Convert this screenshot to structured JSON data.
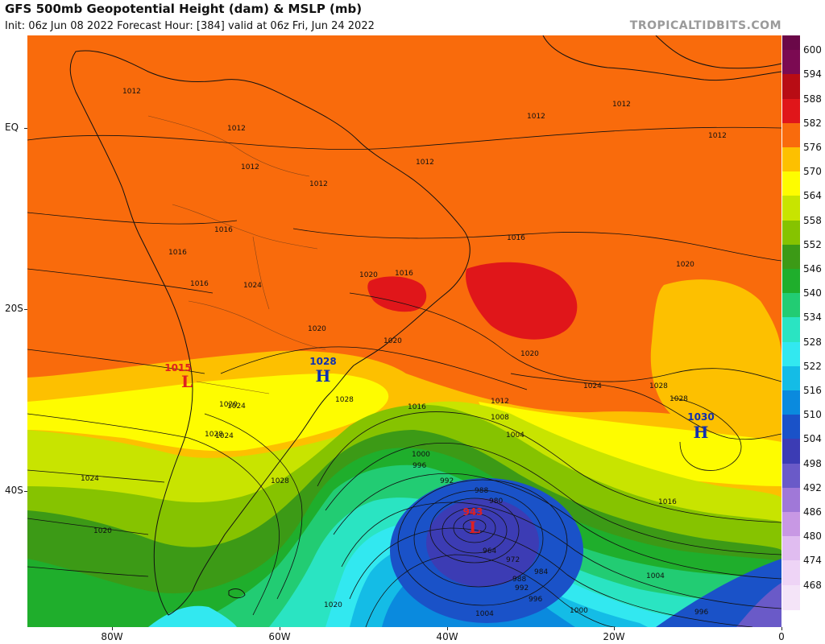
{
  "title": "GFS 500mb Geopotential Height (dam) & MSLP (mb)",
  "subtitle": "Init: 06z Jun 08 2022   Forecast Hour: [384]   valid at 06z Fri, Jun 24 2022",
  "brand": "TROPICALTIDBITS.COM",
  "lat_labels": [
    "EQ",
    "20S",
    "40S"
  ],
  "lon_labels": [
    "80W",
    "60W",
    "40W",
    "20W",
    "0"
  ],
  "colorbar": {
    "labels": [
      "600",
      "594",
      "588",
      "582",
      "576",
      "570",
      "564",
      "558",
      "552",
      "546",
      "540",
      "534",
      "528",
      "522",
      "516",
      "510",
      "504",
      "498",
      "492",
      "486",
      "480",
      "474",
      "468"
    ],
    "colors": [
      "#7b0a52",
      "#b80c14",
      "#e0161a",
      "#f96b0c",
      "#fdc000",
      "#fefc00",
      "#c8e400",
      "#86c300",
      "#3c9a16",
      "#1fae2c",
      "#22cc73",
      "#2ae4c2",
      "#32e8f0",
      "#14bce6",
      "#0a8ade",
      "#1a52c8",
      "#3c3cb4",
      "#6a5ac8",
      "#a078d8",
      "#c898e4",
      "#e0bcf0",
      "#eed4f6",
      "#f4e4f8"
    ]
  },
  "pressure_centers": [
    {
      "type": "L",
      "value": "1015",
      "color": "#e02020"
    },
    {
      "type": "H",
      "value": "1028",
      "color": "#1030b0"
    },
    {
      "type": "L",
      "value": "943",
      "color": "#e02020"
    },
    {
      "type": "H",
      "value": "1030",
      "color": "#1030b0"
    }
  ],
  "isobar_labels": [
    "1012",
    "1012",
    "1012",
    "1012",
    "1012",
    "1012",
    "1012",
    "1012",
    "1016",
    "1016",
    "1016",
    "1016",
    "1016",
    "1020",
    "1020",
    "1024",
    "1020",
    "1020",
    "1024",
    "1024",
    "1028",
    "1028",
    "1028",
    "1028",
    "1020",
    "1020",
    "1024",
    "1024",
    "1028",
    "1020",
    "1012",
    "1016",
    "1008",
    "1004",
    "1000",
    "996",
    "992",
    "988",
    "980",
    "964",
    "972",
    "984",
    "988",
    "992",
    "996",
    "1000",
    "1004",
    "1004",
    "996",
    "1016",
    "1020"
  ]
}
